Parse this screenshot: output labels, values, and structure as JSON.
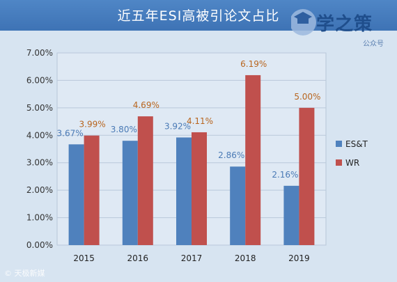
{
  "title": "近五年ESI高被引论文占比",
  "logo": {
    "text": "学之策",
    "subtitle": "公众号"
  },
  "watermark": "© 天极新媒",
  "colors": {
    "title_bar": "#4472c4",
    "series_est": "#4f81bd",
    "series_wr": "#c0504d",
    "label_est": "#4a7ab5",
    "label_wr": "#b8651e",
    "background": "#d7e4f1"
  },
  "chart_data": {
    "type": "bar",
    "categories": [
      "2015",
      "2016",
      "2017",
      "2018",
      "2019"
    ],
    "series": [
      {
        "name": "ES&T",
        "values": [
          3.67,
          3.8,
          3.92,
          2.86,
          2.16
        ],
        "labels": [
          "3.67%",
          "3.80%",
          "3.92%",
          "2.86%",
          "2.16%"
        ]
      },
      {
        "name": "WR",
        "values": [
          3.99,
          4.69,
          4.11,
          6.19,
          5.0
        ],
        "labels": [
          "3.99%",
          "4.69%",
          "4.11%",
          "6.19%",
          "5.00%"
        ]
      }
    ],
    "yticks": [
      "0.00%",
      "1.00%",
      "2.00%",
      "3.00%",
      "4.00%",
      "5.00%",
      "6.00%",
      "7.00%"
    ],
    "ylim": [
      0,
      7
    ],
    "grid": true,
    "legend": "right"
  }
}
